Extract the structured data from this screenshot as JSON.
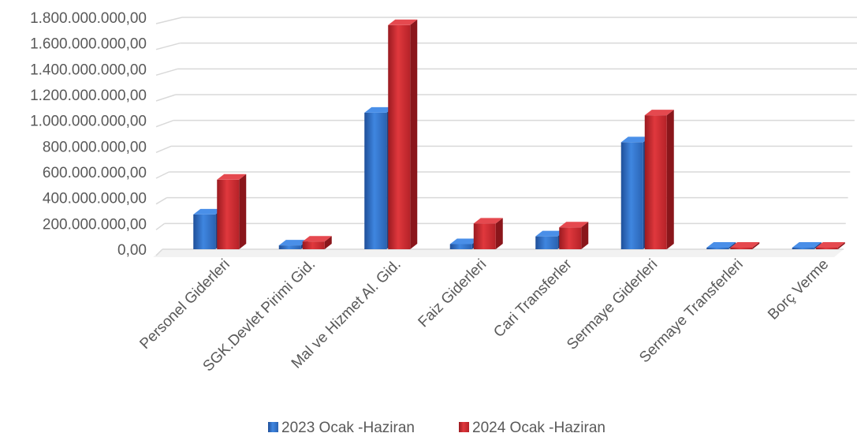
{
  "chart_data": {
    "type": "bar",
    "title": "",
    "xlabel": "",
    "ylabel": "",
    "ylim": [
      0,
      1800000000
    ],
    "y_ticks": [
      0,
      200000000,
      400000000,
      600000000,
      800000000,
      1000000000,
      1200000000,
      1400000000,
      1600000000,
      1800000000
    ],
    "y_tick_labels": [
      "0,00",
      "200.000.000,00",
      "400.000.000,00",
      "600.000.000,00",
      "800.000.000,00",
      "1.000.000.000,00",
      "1.200.000.000,00",
      "1.400.000.000,00",
      "1.600.000.000,00",
      "1.800.000.000,00"
    ],
    "categories": [
      "Personel Giderleri",
      "SGK.Devlet Pirimi Gid.",
      "Mal ve Hizmet Al. Gid.",
      "Faiz Giderleri",
      "Cari Transferler",
      "Sermaye Giderleri",
      "Sermaye Transferleri",
      "Borç Verme"
    ],
    "series": [
      {
        "name": "2023 Ocak -Haziran",
        "color": "#2f6ec0",
        "values": [
          270000000,
          30000000,
          1060000000,
          40000000,
          100000000,
          830000000,
          5000000,
          5000000
        ]
      },
      {
        "name": "2024 Ocak -Haziran",
        "color": "#c0272d",
        "values": [
          540000000,
          60000000,
          1740000000,
          200000000,
          170000000,
          1040000000,
          10000000,
          5000000
        ]
      }
    ],
    "grid": true,
    "legend_position": "bottom"
  }
}
